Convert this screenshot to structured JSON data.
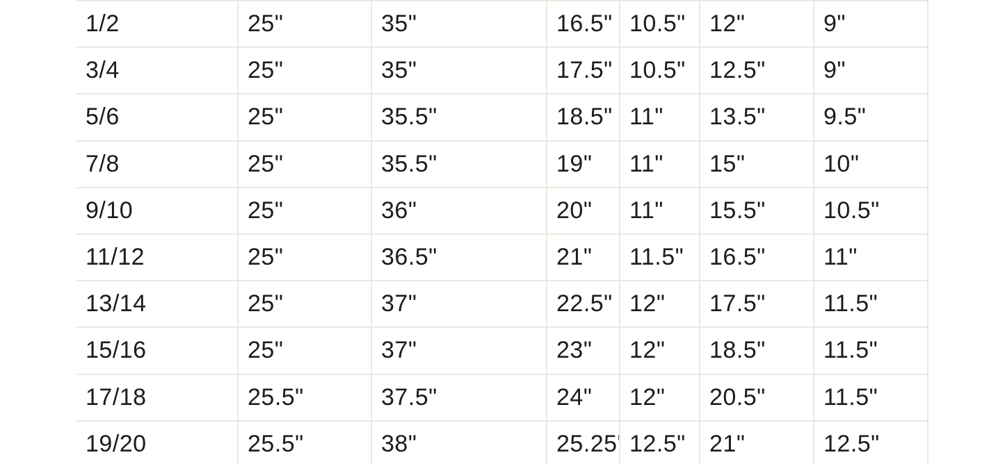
{
  "page": {
    "background_color": "#ffffff",
    "grid_line_color": "#eae8e0",
    "text_color": "#1c1c1c"
  },
  "size_chart": {
    "type": "table",
    "column_count": 7,
    "rows": [
      {
        "cells": [
          "1/2",
          "25\"",
          "35\"",
          "16.5\"",
          "10.5\"",
          "12\"",
          "9\""
        ]
      },
      {
        "cells": [
          "3/4",
          "25\"",
          "35\"",
          "17.5\"",
          "10.5\"",
          "12.5\"",
          "9\""
        ]
      },
      {
        "cells": [
          "5/6",
          "25\"",
          "35.5\"",
          "18.5\"",
          "11\"",
          "13.5\"",
          "9.5\""
        ]
      },
      {
        "cells": [
          "7/8",
          "25\"",
          "35.5\"",
          "19\"",
          "11\"",
          "15\"",
          "10\""
        ]
      },
      {
        "cells": [
          "9/10",
          "25\"",
          "36\"",
          "20\"",
          "11\"",
          "15.5\"",
          "10.5\""
        ]
      },
      {
        "cells": [
          "11/12",
          "25\"",
          "36.5\"",
          "21\"",
          "11.5\"",
          "16.5\"",
          "11\""
        ]
      },
      {
        "cells": [
          "13/14",
          "25\"",
          "37\"",
          "22.5\"",
          "12\"",
          "17.5\"",
          "11.5\""
        ]
      },
      {
        "cells": [
          "15/16",
          "25\"",
          "37\"",
          "23\"",
          "12\"",
          "18.5\"",
          "11.5\""
        ]
      },
      {
        "cells": [
          "17/18",
          "25.5\"",
          "37.5\"",
          "24\"",
          "12\"",
          "20.5\"",
          "11.5\""
        ]
      },
      {
        "cells": [
          "19/20",
          "25.5\"",
          "38\"",
          "25.25\"",
          "12.5\"",
          "21\"",
          "12.5\""
        ]
      }
    ]
  }
}
